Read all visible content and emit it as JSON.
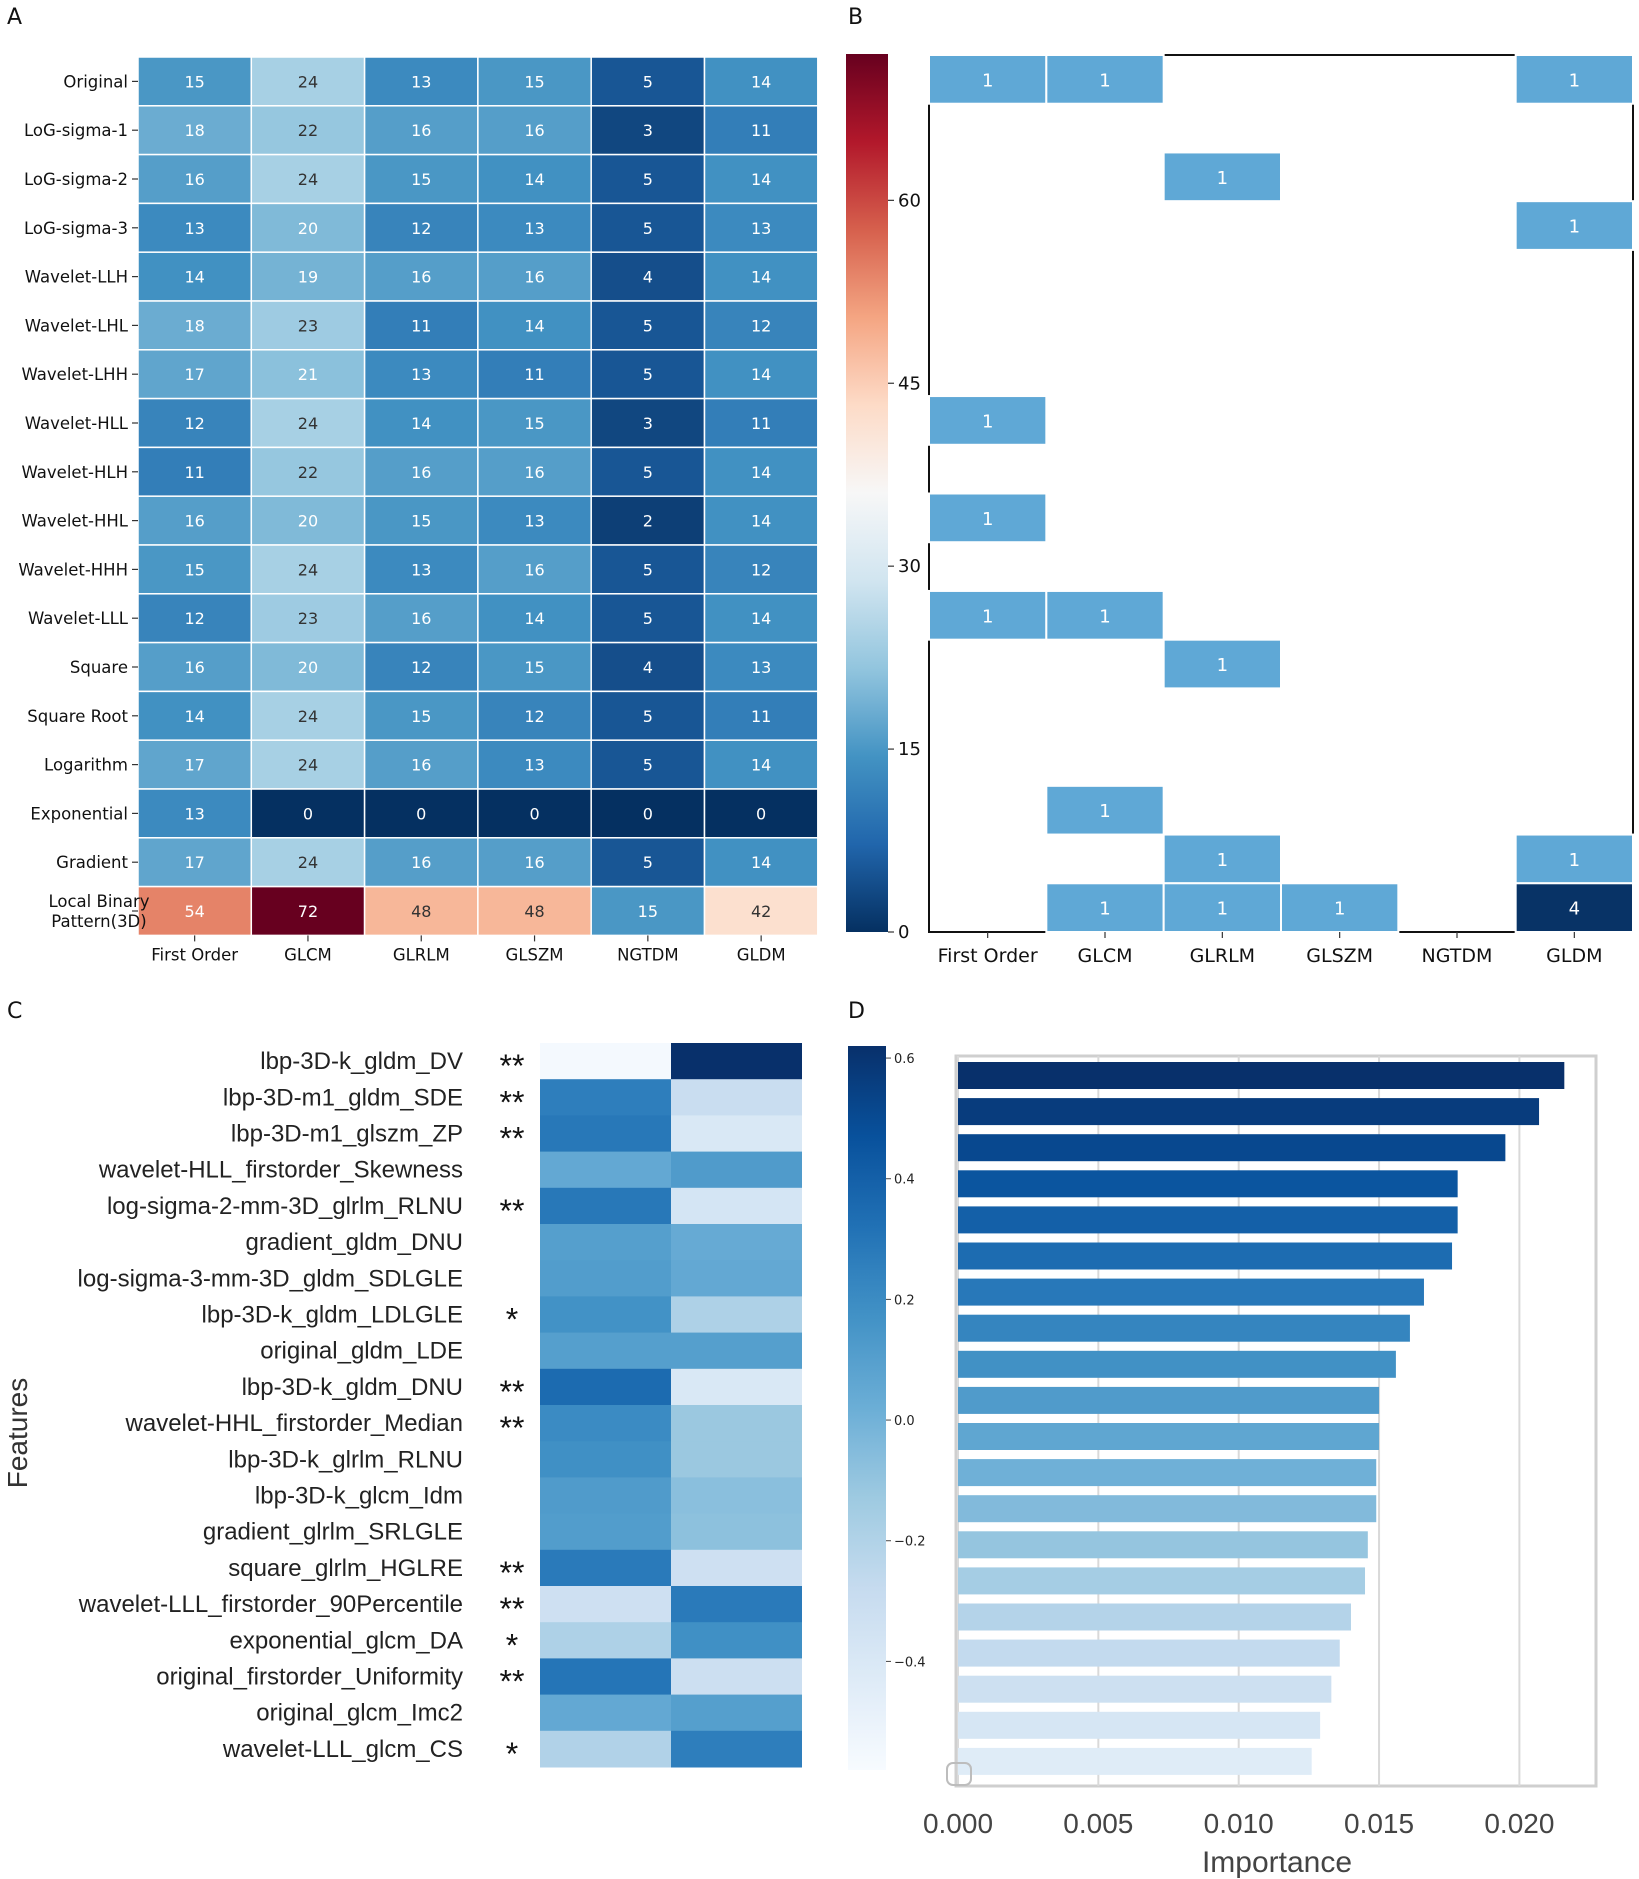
{
  "panel_labels": {
    "a": "A",
    "b": "B",
    "c": "C",
    "d": "D"
  },
  "chart_data": [
    {
      "id": "A",
      "type": "heatmap",
      "title": "",
      "columns": [
        "First Order",
        "GLCM",
        "GLRLM",
        "GLSZM",
        "NGTDM",
        "GLDM"
      ],
      "rows": [
        "Original",
        "LoG-sigma-1",
        "LoG-sigma-2",
        "LoG-sigma-3",
        "Wavelet-LLH",
        "Wavelet-LHL",
        "Wavelet-LHH",
        "Wavelet-HLL",
        "Wavelet-HLH",
        "Wavelet-HHL",
        "Wavelet-HHH",
        "Wavelet-LLL",
        "Square",
        "Square Root",
        "Logarithm",
        "Exponential",
        "Gradient",
        "Local Binary Pattern(3D)"
      ],
      "row_label_lines": [
        [
          "Original"
        ],
        [
          "LoG-sigma-1"
        ],
        [
          "LoG-sigma-2"
        ],
        [
          "LoG-sigma-3"
        ],
        [
          "Wavelet-LLH"
        ],
        [
          "Wavelet-LHL"
        ],
        [
          "Wavelet-LHH"
        ],
        [
          "Wavelet-HLL"
        ],
        [
          "Wavelet-HLH"
        ],
        [
          "Wavelet-HHL"
        ],
        [
          "Wavelet-HHH"
        ],
        [
          "Wavelet-LLL"
        ],
        [
          "Square"
        ],
        [
          "Square Root"
        ],
        [
          "Logarithm"
        ],
        [
          "Exponential"
        ],
        [
          "Gradient"
        ],
        [
          "Local Binary",
          "Pattern(3D)"
        ]
      ],
      "values": [
        [
          15,
          24,
          13,
          15,
          5,
          14
        ],
        [
          18,
          22,
          16,
          16,
          3,
          11
        ],
        [
          16,
          24,
          15,
          14,
          5,
          14
        ],
        [
          13,
          20,
          12,
          13,
          5,
          13
        ],
        [
          14,
          19,
          16,
          16,
          4,
          14
        ],
        [
          18,
          23,
          11,
          14,
          5,
          12
        ],
        [
          17,
          21,
          13,
          11,
          5,
          14
        ],
        [
          12,
          24,
          14,
          15,
          3,
          11
        ],
        [
          11,
          22,
          16,
          16,
          5,
          14
        ],
        [
          16,
          20,
          15,
          13,
          2,
          14
        ],
        [
          15,
          24,
          13,
          16,
          5,
          12
        ],
        [
          12,
          23,
          16,
          14,
          5,
          14
        ],
        [
          16,
          20,
          12,
          15,
          4,
          13
        ],
        [
          14,
          24,
          15,
          12,
          5,
          11
        ],
        [
          17,
          24,
          16,
          13,
          5,
          14
        ],
        [
          13,
          0,
          0,
          0,
          0,
          0
        ],
        [
          17,
          24,
          16,
          16,
          5,
          14
        ],
        [
          54,
          72,
          48,
          48,
          15,
          42
        ]
      ],
      "colorbar": {
        "min": 0,
        "max": 72,
        "ticks": [
          0,
          15,
          30,
          45,
          60
        ],
        "colormap": "RdBu_r"
      }
    },
    {
      "id": "B",
      "type": "heatmap",
      "title": "",
      "columns": [
        "First Order",
        "GLCM",
        "GLRLM",
        "GLSZM",
        "NGTDM",
        "GLDM"
      ],
      "rows": 18,
      "note": "Rows align with panel A rows; blank cells are empty (no value).",
      "values": [
        [
          1,
          1,
          null,
          null,
          null,
          1
        ],
        [
          null,
          null,
          null,
          null,
          null,
          null
        ],
        [
          null,
          null,
          1,
          null,
          null,
          null
        ],
        [
          null,
          null,
          null,
          null,
          null,
          1
        ],
        [
          null,
          null,
          null,
          null,
          null,
          null
        ],
        [
          null,
          null,
          null,
          null,
          null,
          null
        ],
        [
          null,
          null,
          null,
          null,
          null,
          null
        ],
        [
          1,
          null,
          null,
          null,
          null,
          null
        ],
        [
          null,
          null,
          null,
          null,
          null,
          null
        ],
        [
          1,
          null,
          null,
          null,
          null,
          null
        ],
        [
          null,
          null,
          null,
          null,
          null,
          null
        ],
        [
          1,
          1,
          null,
          null,
          null,
          null
        ],
        [
          null,
          null,
          1,
          null,
          null,
          null
        ],
        [
          null,
          null,
          null,
          null,
          null,
          null
        ],
        [
          null,
          null,
          null,
          null,
          null,
          null
        ],
        [
          null,
          1,
          null,
          null,
          null,
          null
        ],
        [
          null,
          null,
          1,
          null,
          null,
          1
        ],
        [
          null,
          1,
          1,
          1,
          null,
          4
        ]
      ]
    },
    {
      "id": "C",
      "type": "heatmap",
      "ylabel": "Features",
      "features": [
        {
          "name": "lbp-3D-k_gldm_DV",
          "sig": "**",
          "values": [
            -0.56,
            0.62
          ]
        },
        {
          "name": "lbp-3D-m1_gldm_SDE",
          "sig": "**",
          "values": [
            0.26,
            -0.3
          ]
        },
        {
          "name": "lbp-3D-m1_glszm_ZP",
          "sig": "**",
          "values": [
            0.29,
            -0.4
          ]
        },
        {
          "name": "wavelet-HLL_firstorder_Skewness",
          "sig": "",
          "values": [
            0.05,
            0.12
          ]
        },
        {
          "name": "log-sigma-2-mm-3D_glrlm_RLNU",
          "sig": "**",
          "values": [
            0.29,
            -0.37
          ]
        },
        {
          "name": "gradient_gldm_DNU",
          "sig": "",
          "values": [
            0.1,
            0.04
          ]
        },
        {
          "name": "log-sigma-3-mm-3D_gldm_SDLGLE",
          "sig": "",
          "values": [
            0.11,
            0.05
          ]
        },
        {
          "name": "lbp-3D-k_gldm_LDLGLE",
          "sig": "*",
          "values": [
            0.17,
            -0.19
          ]
        },
        {
          "name": "original_gldm_LDE",
          "sig": "",
          "values": [
            0.1,
            0.1
          ]
        },
        {
          "name": "lbp-3D-k_gldm_DNU",
          "sig": "**",
          "values": [
            0.35,
            -0.4
          ]
        },
        {
          "name": "wavelet-HHL_firstorder_Median",
          "sig": "**",
          "values": [
            0.2,
            -0.12
          ]
        },
        {
          "name": "lbp-3D-k_glrlm_RLNU",
          "sig": "",
          "values": [
            0.18,
            -0.12
          ]
        },
        {
          "name": "lbp-3D-k_glcm_Idm",
          "sig": "",
          "values": [
            0.12,
            -0.07
          ]
        },
        {
          "name": "gradient_glrlm_SRLGLE",
          "sig": "",
          "values": [
            0.11,
            -0.08
          ]
        },
        {
          "name": "square_glrlm_HGLRE",
          "sig": "**",
          "values": [
            0.28,
            -0.33
          ]
        },
        {
          "name": "wavelet-LLL_firstorder_90Percentile",
          "sig": "**",
          "values": [
            -0.33,
            0.28
          ]
        },
        {
          "name": "exponential_glcm_DA",
          "sig": "*",
          "values": [
            -0.19,
            0.18
          ]
        },
        {
          "name": "original_firstorder_Uniformity",
          "sig": "**",
          "values": [
            0.3,
            -0.32
          ]
        },
        {
          "name": "original_glcm_Imc2",
          "sig": "",
          "values": [
            0.05,
            0.1
          ]
        },
        {
          "name": "wavelet-LLL_glcm_CS",
          "sig": "*",
          "values": [
            -0.2,
            0.26
          ]
        }
      ],
      "colorbar": {
        "min": -0.58,
        "max": 0.62,
        "ticks": [
          "0.6",
          "0.4",
          "0.2",
          "0.0",
          "−0.2",
          "−0.4"
        ],
        "tick_values": [
          0.6,
          0.4,
          0.2,
          0.0,
          -0.2,
          -0.4
        ],
        "colormap": "Blues"
      }
    },
    {
      "id": "D",
      "type": "bar",
      "orientation": "horizontal",
      "xlabel": "Importance",
      "ylabel": "",
      "xlim": [
        0,
        0.0228
      ],
      "xticks": [
        "0.000",
        "0.005",
        "0.010",
        "0.015",
        "0.020"
      ],
      "xtick_values": [
        0.0,
        0.005,
        0.01,
        0.015,
        0.02
      ],
      "values": [
        0.0216,
        0.0207,
        0.0195,
        0.0178,
        0.0178,
        0.0176,
        0.0166,
        0.0161,
        0.0156,
        0.015,
        0.015,
        0.0149,
        0.0149,
        0.0146,
        0.0145,
        0.014,
        0.0136,
        0.0133,
        0.0129,
        0.0126
      ]
    }
  ]
}
